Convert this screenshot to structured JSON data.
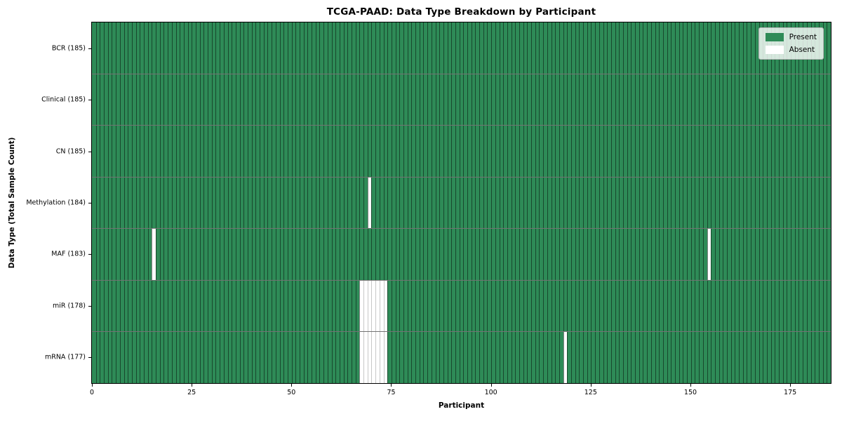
{
  "title": "TCGA-PAAD: Data Type Breakdown by Participant",
  "xlabel": "Participant",
  "ylabel": "Data Type (Total Sample Count)",
  "colors": {
    "present": "#2e8b57",
    "absent": "#ffffff"
  },
  "legend": {
    "present_label": "Present",
    "absent_label": "Absent",
    "position": "upper right"
  },
  "chart_data": {
    "type": "heatmap",
    "title": "TCGA-PAAD: Data Type Breakdown by Participant",
    "xlabel": "Participant",
    "ylabel": "Data Type (Total Sample Count)",
    "x_range": [
      0,
      185
    ],
    "n_participants": 185,
    "x_ticks": [
      0,
      25,
      50,
      75,
      100,
      125,
      150,
      175
    ],
    "grid": false,
    "legend_entries": [
      "Present",
      "Absent"
    ],
    "rows": [
      {
        "data_type": "BCR",
        "label": "BCR (185)",
        "total": 185,
        "absent_participants": []
      },
      {
        "data_type": "Clinical",
        "label": "Clinical (185)",
        "total": 185,
        "absent_participants": []
      },
      {
        "data_type": "CN",
        "label": "CN (185)",
        "total": 185,
        "absent_participants": []
      },
      {
        "data_type": "Methylation",
        "label": "Methylation (184)",
        "total": 184,
        "absent_participants": [
          69
        ]
      },
      {
        "data_type": "MAF",
        "label": "MAF (183)",
        "total": 183,
        "absent_participants": [
          15,
          154
        ]
      },
      {
        "data_type": "miR",
        "label": "miR (178)",
        "total": 178,
        "absent_participants": [
          67,
          68,
          69,
          70,
          71,
          72,
          73
        ]
      },
      {
        "data_type": "mRNA",
        "label": "mRNA (177)",
        "total": 177,
        "absent_participants": [
          67,
          68,
          69,
          70,
          71,
          72,
          73,
          118
        ]
      }
    ]
  }
}
